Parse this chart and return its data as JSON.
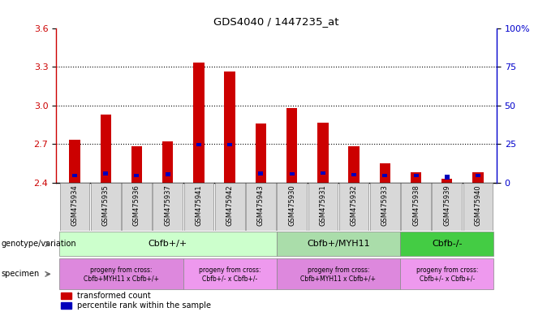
{
  "title": "GDS4040 / 1447235_at",
  "samples": [
    "GSM475934",
    "GSM475935",
    "GSM475936",
    "GSM475937",
    "GSM475941",
    "GSM475942",
    "GSM475943",
    "GSM475930",
    "GSM475931",
    "GSM475932",
    "GSM475933",
    "GSM475938",
    "GSM475939",
    "GSM475940"
  ],
  "red_values": [
    2.73,
    2.93,
    2.68,
    2.72,
    3.33,
    3.265,
    2.86,
    2.98,
    2.865,
    2.68,
    2.55,
    2.48,
    2.43,
    2.48
  ],
  "blue_bottom": [
    2.44,
    2.455,
    2.44,
    2.45,
    2.68,
    2.68,
    2.455,
    2.455,
    2.46,
    2.45,
    2.44,
    2.44,
    2.42,
    2.44
  ],
  "blue_height": [
    0.03,
    0.03,
    0.025,
    0.03,
    0.03,
    0.025,
    0.028,
    0.025,
    0.028,
    0.025,
    0.025,
    0.025,
    0.04,
    0.025
  ],
  "ymin": 2.4,
  "ymax": 3.6,
  "yticks_left": [
    2.4,
    2.7,
    3.0,
    3.3,
    3.6
  ],
  "yticks_right": [
    0,
    25,
    50,
    75,
    100
  ],
  "ytick_right_labels": [
    "0",
    "25",
    "50",
    "75",
    "100%"
  ],
  "red_color": "#cc0000",
  "blue_color": "#0000bb",
  "bar_width": 0.35,
  "geno_groups": [
    {
      "label": "Cbfb+/+",
      "xstart": -0.5,
      "xend": 6.5,
      "color": "#ccffcc"
    },
    {
      "label": "Cbfb+/MYH11",
      "xstart": 6.5,
      "xend": 10.5,
      "color": "#aaddaa"
    },
    {
      "label": "Cbfb-/-",
      "xstart": 10.5,
      "xend": 13.5,
      "color": "#44cc44"
    }
  ],
  "spec_groups": [
    {
      "label": "progeny from cross:\nCbfb+MYH11 x Cbfb+/+",
      "xstart": -0.5,
      "xend": 3.5,
      "color": "#dd88dd"
    },
    {
      "label": "progeny from cross:\nCbfb+/- x Cbfb+/-",
      "xstart": 3.5,
      "xend": 6.5,
      "color": "#ee99ee"
    },
    {
      "label": "progeny from cross:\nCbfb+MYH11 x Cbfb+/+",
      "xstart": 6.5,
      "xend": 10.5,
      "color": "#dd88dd"
    },
    {
      "label": "progeny from cross:\nCbfb+/- x Cbfb+/-",
      "xstart": 10.5,
      "xend": 13.5,
      "color": "#ee99ee"
    }
  ],
  "legend_red": "transformed count",
  "legend_blue": "percentile rank within the sample",
  "left_axis_color": "#cc0000",
  "right_axis_color": "#0000cc"
}
